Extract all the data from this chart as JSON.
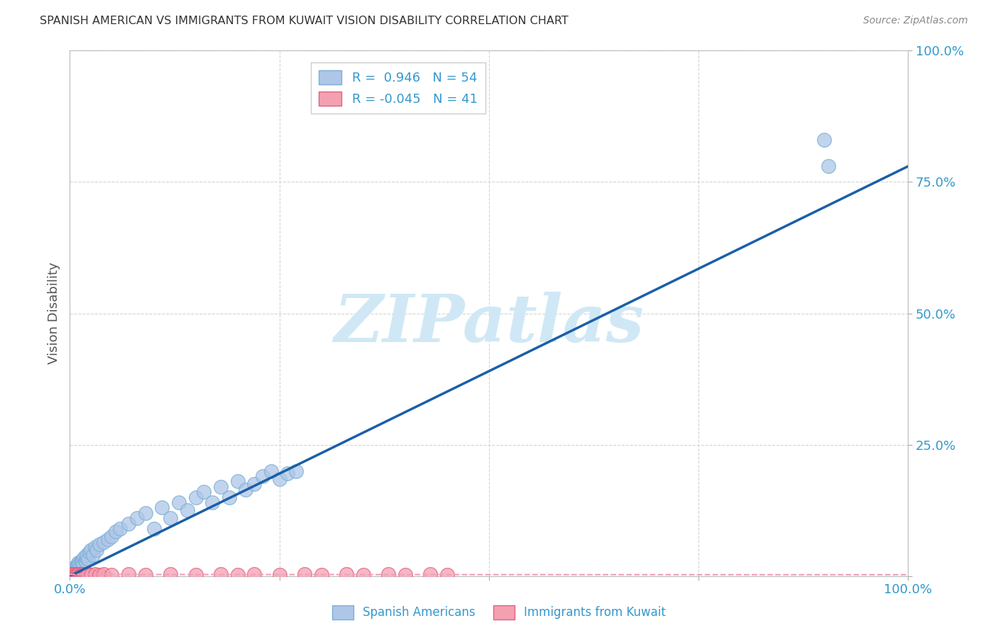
{
  "title": "SPANISH AMERICAN VS IMMIGRANTS FROM KUWAIT VISION DISABILITY CORRELATION CHART",
  "source": "Source: ZipAtlas.com",
  "ylabel": "Vision Disability",
  "ytick_values": [
    0,
    25,
    50,
    75,
    100
  ],
  "xtick_values": [
    0,
    25,
    50,
    75,
    100
  ],
  "watermark": "ZIPatlas",
  "legend_blue_label": "R =  0.946   N = 54",
  "legend_pink_label": "R = -0.045   N = 41",
  "blue_scatter_x": [
    0.3,
    0.5,
    0.6,
    0.7,
    0.8,
    0.9,
    1.0,
    1.0,
    1.1,
    1.2,
    1.3,
    1.4,
    1.5,
    1.6,
    1.7,
    1.8,
    1.9,
    2.0,
    2.0,
    2.2,
    2.3,
    2.5,
    2.8,
    3.0,
    3.2,
    3.5,
    4.0,
    4.5,
    5.0,
    5.5,
    6.0,
    7.0,
    8.0,
    9.0,
    10.0,
    11.0,
    12.0,
    13.0,
    14.0,
    15.0,
    16.0,
    17.0,
    18.0,
    19.0,
    20.0,
    21.0,
    22.0,
    23.0,
    24.0,
    25.0,
    26.0,
    27.0,
    90.0,
    90.5
  ],
  "blue_scatter_y": [
    1.0,
    1.5,
    1.2,
    1.8,
    2.0,
    1.5,
    2.5,
    1.8,
    2.2,
    2.0,
    2.8,
    2.5,
    3.0,
    2.2,
    3.5,
    3.0,
    2.8,
    3.5,
    4.0,
    3.2,
    4.5,
    5.0,
    4.0,
    5.5,
    5.0,
    6.0,
    6.5,
    7.0,
    7.5,
    8.5,
    9.0,
    10.0,
    11.0,
    12.0,
    9.0,
    13.0,
    11.0,
    14.0,
    12.5,
    15.0,
    16.0,
    14.0,
    17.0,
    15.0,
    18.0,
    16.5,
    17.5,
    19.0,
    20.0,
    18.5,
    19.5,
    20.0,
    83.0,
    78.0
  ],
  "pink_scatter_x": [
    0.2,
    0.3,
    0.4,
    0.5,
    0.6,
    0.7,
    0.8,
    0.9,
    1.0,
    1.1,
    1.2,
    1.3,
    1.4,
    1.5,
    1.6,
    1.7,
    1.8,
    1.9,
    2.0,
    2.2,
    2.5,
    3.0,
    3.5,
    4.0,
    5.0,
    7.0,
    9.0,
    12.0,
    15.0,
    18.0,
    20.0,
    22.0,
    25.0,
    28.0,
    30.0,
    33.0,
    35.0,
    38.0,
    40.0,
    43.0,
    45.0
  ],
  "pink_scatter_y": [
    0.3,
    0.2,
    0.4,
    0.3,
    0.2,
    0.4,
    0.3,
    0.2,
    0.4,
    0.3,
    0.2,
    0.4,
    0.3,
    0.2,
    0.4,
    0.3,
    0.2,
    0.3,
    0.4,
    0.3,
    0.2,
    0.3,
    0.2,
    0.3,
    0.2,
    0.3,
    0.2,
    0.3,
    0.2,
    0.3,
    0.2,
    0.3,
    0.2,
    0.3,
    0.2,
    0.3,
    0.2,
    0.3,
    0.2,
    0.3,
    0.2
  ],
  "blue_line_x": [
    0,
    100
  ],
  "blue_line_y": [
    0,
    78
  ],
  "pink_line_x": [
    0,
    100
  ],
  "pink_line_y": [
    0.3,
    0.25
  ],
  "background_color": "#ffffff",
  "grid_color": "#d0d0d0",
  "blue_scatter_color": "#aec6e8",
  "blue_scatter_edge": "#7bafd4",
  "pink_scatter_color": "#f4a0b0",
  "pink_scatter_edge": "#e06080",
  "blue_line_color": "#1a5fa8",
  "pink_line_color": "#f0a0b8",
  "axis_label_color": "#3399cc",
  "ylabel_color": "#555555",
  "title_color": "#333333",
  "watermark_color": "#d0e8f5",
  "source_color": "#888888"
}
